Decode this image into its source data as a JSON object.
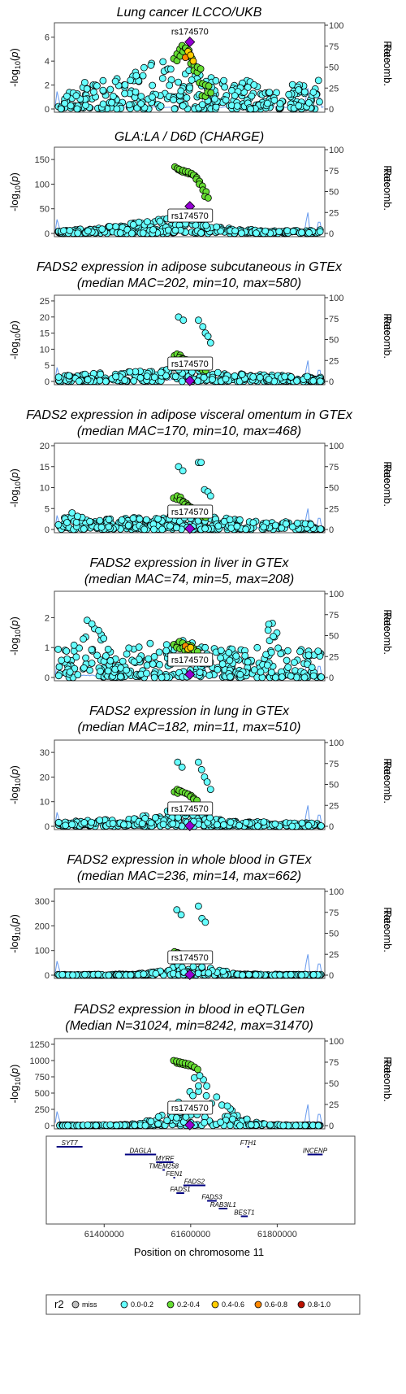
{
  "chart_data": [
    {
      "type": "scatter",
      "title": [
        "Lung cancer ILCCO/UKB"
      ],
      "ylabel": "-log10(p)",
      "y2label": "Recomb. Rate",
      "ylim": [
        0,
        7
      ],
      "yticks": [
        0,
        2,
        4,
        6
      ],
      "y2ticks": [
        0,
        25,
        50,
        75,
        100
      ],
      "lead_snp": "rs174570",
      "lead_y": 5.6,
      "label_boxed": false,
      "peak_heights": [
        0.4,
        1.6,
        2.6,
        2.9,
        3.0,
        3.6,
        4.4,
        3.5,
        3.0,
        2.6,
        2.2,
        2.5,
        1.8,
        2.0,
        2.2,
        2.7
      ],
      "high_ld": [
        4.2,
        4.6,
        5.0,
        5.3,
        5.1,
        4.4,
        3.8,
        3.2,
        3.5,
        2.2,
        1.1,
        2.0,
        1.4
      ],
      "mid_ld": [
        4.3,
        4.8,
        4.5,
        4.0
      ],
      "spikes": [
        [
          61292000,
          0.25
        ],
        [
          61630000,
          0.2
        ],
        [
          61870000,
          0.3
        ],
        [
          61897000,
          0.2
        ]
      ]
    },
    {
      "type": "scatter",
      "title": [
        "GLA:LA / D6D (CHARGE)"
      ],
      "ylabel": "-log10(p)",
      "y2label": "Recomb. Rate",
      "ylim": [
        0,
        170
      ],
      "yticks": [
        0,
        50,
        100,
        150
      ],
      "y2ticks": [
        0,
        25,
        50,
        75,
        100
      ],
      "lead_snp": "rs174570",
      "lead_y": 55,
      "label_boxed": true,
      "peak_heights": [
        4,
        8,
        10,
        14,
        20,
        25,
        30,
        40,
        20,
        14,
        10,
        8,
        6,
        6,
        6,
        8
      ],
      "high_ld": [
        135,
        132,
        130,
        128,
        126,
        125,
        122,
        118,
        110,
        100,
        88,
        75
      ],
      "mid_ld": [],
      "spikes": [
        [
          61292000,
          0.2
        ],
        [
          61630000,
          0.25
        ],
        [
          61870000,
          0.3
        ],
        [
          61897000,
          0.2
        ]
      ]
    },
    {
      "type": "scatter",
      "title": [
        "FADS2 expression in adipose subcutaneous in GTEx",
        "(median MAC=202, min=10, max=580)"
      ],
      "ylabel": "-log10(p)",
      "y2label": "Recomb. Rate",
      "ylim": [
        0,
        26
      ],
      "yticks": [
        0,
        5,
        10,
        15,
        20,
        25
      ],
      "y2ticks": [
        0,
        25,
        50,
        75,
        100
      ],
      "lead_snp": "rs174570",
      "lead_y": 0.2,
      "label_boxed": true,
      "peak_heights": [
        1.5,
        2,
        2.5,
        3,
        3,
        3.5,
        4,
        5,
        4,
        3,
        2.5,
        2.2,
        2,
        1.8,
        1.6,
        1.5
      ],
      "high_ld": [
        8,
        8.5,
        7.5,
        7,
        6.5,
        6,
        5.5,
        5,
        4.5,
        4,
        3.5
      ],
      "mid_ld": [],
      "extra_high": [
        [
          61572000,
          20
        ],
        [
          61583000,
          19
        ],
        [
          61618000,
          19
        ],
        [
          61628000,
          17
        ],
        [
          61634000,
          15
        ],
        [
          61640000,
          14
        ],
        [
          61646000,
          12
        ]
      ],
      "spikes": [
        [
          61292000,
          0.2
        ],
        [
          61630000,
          0.25
        ],
        [
          61870000,
          0.3
        ],
        [
          61897000,
          0.2
        ]
      ]
    },
    {
      "type": "scatter",
      "title": [
        "FADS2 expression in adipose visceral omentum in GTEx",
        "(median MAC=170, min=10, max=468)"
      ],
      "ylabel": "-log10(p)",
      "y2label": "Recomb. Rate",
      "ylim": [
        0,
        20
      ],
      "yticks": [
        0,
        5,
        10,
        15,
        20
      ],
      "y2ticks": [
        0,
        25,
        50,
        75,
        100
      ],
      "lead_snp": "rs174570",
      "lead_y": 0.2,
      "label_boxed": true,
      "peak_heights": [
        1.5,
        4.5,
        2,
        2.5,
        2.8,
        3,
        3.2,
        4,
        3.5,
        3,
        2.5,
        2.2,
        2,
        1.8,
        1.6,
        1.5
      ],
      "high_ld": [
        7.5,
        8,
        7,
        6.5,
        6,
        5.5,
        5,
        4.5,
        4,
        3.5,
        3
      ],
      "mid_ld": [],
      "extra_high": [
        [
          61572000,
          15
        ],
        [
          61582000,
          14
        ],
        [
          61618000,
          16
        ],
        [
          61624000,
          16
        ],
        [
          61632000,
          9.5
        ],
        [
          61640000,
          9
        ],
        [
          61646000,
          8
        ]
      ],
      "spikes": [
        [
          61292000,
          0.2
        ],
        [
          61630000,
          0.25
        ],
        [
          61870000,
          0.3
        ],
        [
          61897000,
          0.2
        ]
      ]
    },
    {
      "type": "scatter",
      "title": [
        "FADS2 expression in liver in GTEx",
        "(median MAC=74, min=5, max=208)"
      ],
      "ylabel": "-log10(p)",
      "y2label": "Recomb. Rate",
      "ylim": [
        0,
        2.8
      ],
      "yticks": [
        0,
        1,
        2
      ],
      "y2ticks": [
        0,
        25,
        50,
        75,
        100
      ],
      "lead_snp": "rs174570",
      "lead_y": 0.1,
      "label_boxed": true,
      "peak_heights": [
        1.0,
        1.1,
        2.2,
        1.0,
        1.0,
        1.2,
        1.1,
        1.3,
        1.1,
        1.0,
        1.1,
        1.0,
        1.9,
        1.0,
        1.0,
        1.0
      ],
      "high_ld": [
        1.1,
        1.0,
        1.2,
        1.0,
        0.9,
        1.1,
        1.0,
        0.9
      ],
      "mid_ld": [
        1.05,
        0.95,
        1.0
      ],
      "spikes": [
        [
          61292000,
          0.2
        ],
        [
          61630000,
          0.25
        ],
        [
          61870000,
          0.3
        ],
        [
          61897000,
          0.2
        ]
      ]
    },
    {
      "type": "scatter",
      "title": [
        "FADS2 expression in lung in GTEx",
        "(median MAC=182, min=11, max=510)"
      ],
      "ylabel": "-log10(p)",
      "y2label": "Recomb. Rate",
      "ylim": [
        0,
        34
      ],
      "yticks": [
        0,
        10,
        20,
        30
      ],
      "y2ticks": [
        0,
        25,
        50,
        75,
        100
      ],
      "lead_snp": "rs174570",
      "lead_y": 0.2,
      "label_boxed": true,
      "peak_heights": [
        1.5,
        2,
        2.5,
        3,
        3.5,
        4.5,
        6,
        8,
        5,
        3,
        2.2,
        2,
        1.8,
        1.6,
        1.5,
        1.4
      ],
      "high_ld": [
        14,
        15,
        14.5,
        14,
        13.5,
        13,
        12,
        11
      ],
      "mid_ld": [],
      "extra_high": [
        [
          61570000,
          26
        ],
        [
          61580000,
          24
        ],
        [
          61618000,
          26
        ],
        [
          61625000,
          23
        ],
        [
          61632000,
          20
        ],
        [
          61638000,
          18
        ],
        [
          61646000,
          15
        ]
      ],
      "spikes": [
        [
          61292000,
          0.2
        ],
        [
          61630000,
          0.25
        ],
        [
          61870000,
          0.3
        ],
        [
          61897000,
          0.2
        ]
      ]
    },
    {
      "type": "scatter",
      "title": [
        "FADS2 expression in whole blood in GTEx",
        "(median MAC=236, min=14, max=662)"
      ],
      "ylabel": "-log10(p)",
      "y2label": "Recomb. Rate",
      "ylim": [
        0,
        340
      ],
      "yticks": [
        0,
        100,
        200,
        300
      ],
      "y2ticks": [
        0,
        25,
        50,
        75,
        100
      ],
      "lead_snp": "rs174570",
      "lead_y": 2,
      "label_boxed": true,
      "peak_heights": [
        3,
        3,
        3,
        4,
        5,
        8,
        20,
        45,
        40,
        25,
        8,
        5,
        4,
        3,
        3,
        3
      ],
      "high_ld": [
        95,
        90,
        85,
        80,
        75,
        70,
        65,
        60
      ],
      "mid_ld": [],
      "extra_high": [
        [
          61568000,
          265
        ],
        [
          61578000,
          245
        ],
        [
          61618000,
          280
        ],
        [
          61626000,
          230
        ],
        [
          61634000,
          215
        ]
      ],
      "spikes": [
        [
          61292000,
          0.2
        ],
        [
          61630000,
          0.25
        ],
        [
          61870000,
          0.3
        ],
        [
          61897000,
          0.2
        ]
      ]
    },
    {
      "type": "scatter",
      "title": [
        "FADS2 expression in blood in eQTLGen",
        "(Median N=31024, min=8242, max=31470)"
      ],
      "ylabel": "-log10(p)",
      "y2label": "Recomb. Rate",
      "ylim": [
        0,
        1300
      ],
      "yticks": [
        0,
        250,
        500,
        750,
        1000,
        1250
      ],
      "y2ticks": [
        0,
        25,
        50,
        75,
        100
      ],
      "lead_snp": "rs174570",
      "lead_y": 10,
      "label_boxed": true,
      "peak_heights": [
        10,
        10,
        10,
        12,
        20,
        60,
        200,
        450,
        900,
        600,
        200,
        60,
        20,
        10,
        10,
        10
      ],
      "high_ld": [
        1000,
        990,
        980,
        970,
        960,
        950,
        930,
        900
      ],
      "mid_ld": [],
      "spikes": [
        [
          61292000,
          0.2
        ],
        [
          61630000,
          0.25
        ],
        [
          61870000,
          0.3
        ],
        [
          61897000,
          0.2
        ]
      ]
    }
  ],
  "x_axis": {
    "label": "Position on chromosome 11",
    "xlim": [
      61285000,
      61910000
    ],
    "ticks": [
      61400000,
      61600000,
      61800000
    ],
    "tick_labels": [
      "61400000",
      "61600000",
      "61800000"
    ]
  },
  "genes": [
    {
      "name": "SYT7",
      "start": 61290000,
      "end": 61350000,
      "row": 0
    },
    {
      "name": "FTH1",
      "start": 61731000,
      "end": 61735000,
      "row": 0
    },
    {
      "name": "INCENP",
      "start": 61870000,
      "end": 61905000,
      "row": 1
    },
    {
      "name": "DAGLA",
      "start": 61448000,
      "end": 61520000,
      "row": 1
    },
    {
      "name": "MYRF",
      "start": 61520000,
      "end": 61560000,
      "row": 2
    },
    {
      "name": "TMEM258",
      "start": 61535000,
      "end": 61540000,
      "row": 3
    },
    {
      "name": "FEN1",
      "start": 61560000,
      "end": 61564000,
      "row": 4
    },
    {
      "name": "FADS2",
      "start": 61583000,
      "end": 61634000,
      "row": 5
    },
    {
      "name": "FADS1",
      "start": 61567000,
      "end": 61585000,
      "row": 6
    },
    {
      "name": "FADS3",
      "start": 61638000,
      "end": 61660000,
      "row": 7
    },
    {
      "name": "RAB3IL1",
      "start": 61665000,
      "end": 61685000,
      "row": 8
    },
    {
      "name": "BEST1",
      "start": 61716000,
      "end": 61732000,
      "row": 9
    }
  ],
  "legend": {
    "title": "r2",
    "items": [
      {
        "label": "miss",
        "color": "#bfbfbf"
      },
      {
        "label": "0.0-0.2",
        "color": "#66ffff"
      },
      {
        "label": "0.2-0.4",
        "color": "#66dd33"
      },
      {
        "label": "0.4-0.6",
        "color": "#ffcc00"
      },
      {
        "label": "0.6-0.8",
        "color": "#ff8800"
      },
      {
        "label": "0.8-1.0",
        "color": "#bb1100"
      }
    ]
  },
  "colors": {
    "lead": "#9400d3",
    "recomb": "#6699ee",
    "gene": "#000080",
    "frame": "#4d4d4d"
  }
}
